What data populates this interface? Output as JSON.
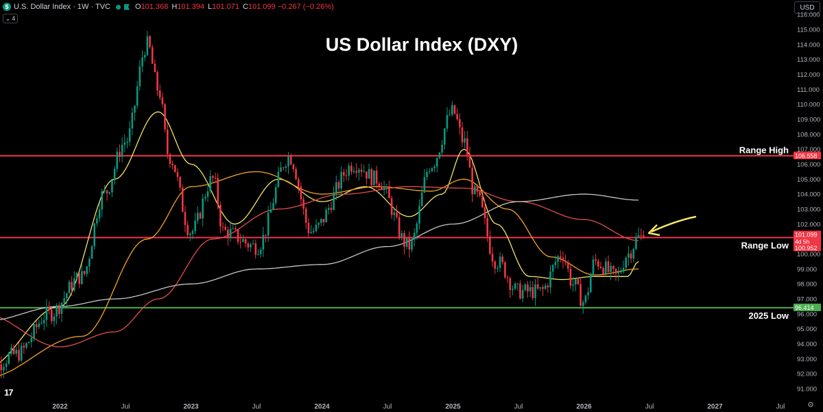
{
  "header": {
    "logo_letter": "$",
    "title": "U.S. Dollar Index · 1W · TVC",
    "ohlc": [
      {
        "label": "O",
        "value": "101.368"
      },
      {
        "label": "H",
        "value": "101.394"
      },
      {
        "label": "L",
        "value": "101.071"
      },
      {
        "label": "C",
        "value": "101.099 −0.267 (−0.26%)"
      }
    ],
    "collapse_label": "4",
    "currency": "USD"
  },
  "colors": {
    "up": "#089981",
    "down": "#f23645",
    "range_lines": "#f23645",
    "support_line": "#4caf50",
    "ma_yellow": "#f5e663",
    "ma_orange": "#f5a623",
    "ma_red": "#e84c4c",
    "ma_gray": "#c8c8c8",
    "arrow": "#f5e663"
  },
  "chart_data": {
    "type": "candlestick",
    "title": "US Dollar Index (DXY)",
    "ylim": [
      90.5,
      116.6
    ],
    "y_ticks": [
      "91.000",
      "92.000",
      "93.000",
      "94.000",
      "95.000",
      "96.000",
      "97.000",
      "98.000",
      "99.000",
      "100.000",
      "101.000",
      "102.000",
      "103.000",
      "104.000",
      "105.000",
      "106.000",
      "107.000",
      "108.000",
      "109.000",
      "110.000",
      "111.000",
      "112.000",
      "113.000",
      "114.000",
      "115.000",
      "116.000"
    ],
    "x_labels": [
      "Jul",
      "2022",
      "Jul",
      "2023",
      "Jul",
      "2024",
      "Jul",
      "2025",
      "Jul",
      "2026",
      "Jul",
      "2027",
      "Jul"
    ],
    "x_range": [
      "2021-07",
      "2027-07"
    ],
    "anchors": [
      {
        "date": "2021-06",
        "value": 92.0
      },
      {
        "date": "2021-09",
        "value": 93.3
      },
      {
        "date": "2021-12",
        "value": 96.0
      },
      {
        "date": "2022-03",
        "value": 98.5
      },
      {
        "date": "2022-05",
        "value": 104.0
      },
      {
        "date": "2022-07",
        "value": 107.5
      },
      {
        "date": "2022-09",
        "value": 114.0
      },
      {
        "date": "2022-10",
        "value": 111.0
      },
      {
        "date": "2022-11",
        "value": 106.5
      },
      {
        "date": "2023-01",
        "value": 101.5
      },
      {
        "date": "2023-03",
        "value": 105.0
      },
      {
        "date": "2023-04",
        "value": 101.5
      },
      {
        "date": "2023-07",
        "value": 100.5
      },
      {
        "date": "2023-10",
        "value": 106.5
      },
      {
        "date": "2023-12",
        "value": 101.5
      },
      {
        "date": "2024-04",
        "value": 106.0
      },
      {
        "date": "2024-06",
        "value": 105.0
      },
      {
        "date": "2024-09",
        "value": 100.5
      },
      {
        "date": "2024-11",
        "value": 106.0
      },
      {
        "date": "2025-01",
        "value": 109.5
      },
      {
        "date": "2025-02",
        "value": 107.5
      },
      {
        "date": "2025-03",
        "value": 104.0
      },
      {
        "date": "2025-05",
        "value": 99.5
      },
      {
        "date": "2025-07",
        "value": 97.5
      },
      {
        "date": "2025-09",
        "value": 97.5
      },
      {
        "date": "2025-11",
        "value": 100.0
      },
      {
        "date": "2025-12",
        "value": 98.0
      },
      {
        "date": "2026-01",
        "value": 96.8
      },
      {
        "date": "2026-02",
        "value": 99.5
      },
      {
        "date": "2026-04",
        "value": 98.5
      },
      {
        "date": "2026-05",
        "value": 100.0
      },
      {
        "date": "2026-06",
        "value": 101.1
      }
    ],
    "moving_averages": [
      {
        "color": "#f5e663",
        "points": [
          [
            "2021-06",
            92.3
          ],
          [
            "2022-01",
            96.5
          ],
          [
            "2022-06",
            105.0
          ],
          [
            "2022-10",
            109.5
          ],
          [
            "2023-01",
            106.0
          ],
          [
            "2023-05",
            102.0
          ],
          [
            "2023-09",
            105.0
          ],
          [
            "2024-01",
            103.5
          ],
          [
            "2024-05",
            104.5
          ],
          [
            "2024-09",
            102.5
          ],
          [
            "2024-12",
            104.0
          ],
          [
            "2025-02",
            107.0
          ],
          [
            "2025-05",
            102.0
          ],
          [
            "2025-08",
            98.5
          ],
          [
            "2025-11",
            98.3
          ],
          [
            "2026-02",
            98.5
          ],
          [
            "2026-05",
            98.5
          ],
          [
            "2026-06",
            99.5
          ]
        ]
      },
      {
        "color": "#f5a623",
        "points": [
          [
            "2021-06",
            91.7
          ],
          [
            "2022-03",
            94.5
          ],
          [
            "2022-09",
            101.0
          ],
          [
            "2023-01",
            104.5
          ],
          [
            "2023-07",
            105.5
          ],
          [
            "2024-01",
            104.0
          ],
          [
            "2024-06",
            104.5
          ],
          [
            "2024-11",
            104.2
          ],
          [
            "2025-02",
            105.0
          ],
          [
            "2025-06",
            103.0
          ],
          [
            "2025-10",
            99.8
          ],
          [
            "2026-02",
            98.6
          ],
          [
            "2026-06",
            99.0
          ]
        ]
      },
      {
        "color": "#e84c4c",
        "points": [
          [
            "2021-06",
            96.0
          ],
          [
            "2022-01",
            93.8
          ],
          [
            "2022-06",
            94.8
          ],
          [
            "2022-10",
            97.0
          ],
          [
            "2023-03",
            101.0
          ],
          [
            "2023-09",
            103.0
          ],
          [
            "2024-03",
            104.0
          ],
          [
            "2024-09",
            104.5
          ],
          [
            "2025-02",
            104.4
          ],
          [
            "2025-07",
            103.5
          ],
          [
            "2026-01",
            102.3
          ],
          [
            "2026-06",
            100.9
          ]
        ]
      },
      {
        "color": "#c8c8c8",
        "points": [
          [
            "2021-06",
            95.5
          ],
          [
            "2022-01",
            96.5
          ],
          [
            "2022-06",
            97.0
          ],
          [
            "2023-01",
            98.0
          ],
          [
            "2023-07",
            99.0
          ],
          [
            "2024-01",
            99.3
          ],
          [
            "2024-07",
            100.5
          ],
          [
            "2025-01",
            102.0
          ],
          [
            "2025-07",
            103.5
          ],
          [
            "2026-01",
            104.0
          ],
          [
            "2026-06",
            103.6
          ]
        ]
      }
    ],
    "horizontal_lines": [
      {
        "value": 106.558,
        "label": "Range High",
        "price_label": "106.558",
        "color": "#f23645"
      },
      {
        "value": 101.099,
        "label": "Range Low",
        "price_label": "101.099",
        "sub_label": "4d 5h",
        "extra_label": "100.952",
        "color": "#f23645"
      },
      {
        "value": 96.414,
        "label": "2025 Low",
        "price_label": "96.414",
        "color": "#4caf50"
      }
    ],
    "last_price": 101.099
  },
  "footer": {
    "logo_text": "17",
    "settings_icon": "gear-icon"
  }
}
